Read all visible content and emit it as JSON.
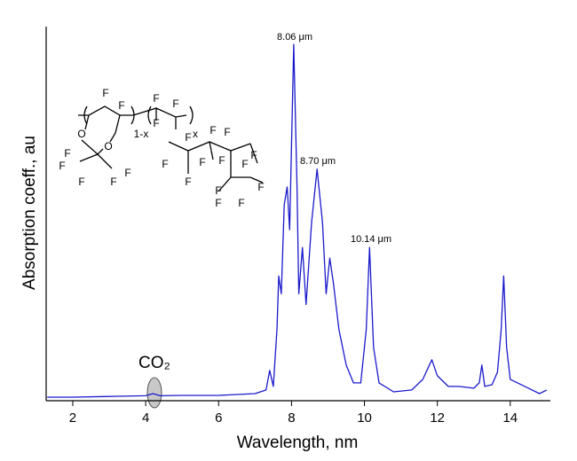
{
  "chart_data": {
    "type": "line",
    "xlabel": "Wavelength, nm",
    "ylabel": "Absorption coeff., au",
    "xlim": [
      1.27,
      15.1
    ],
    "ylim": [
      0,
      1.05
    ],
    "xticks": [
      2,
      4,
      6,
      8,
      10,
      12,
      14
    ],
    "x": [
      1.3,
      2,
      3,
      4,
      4.2,
      4.4,
      5,
      6,
      7,
      7.3,
      7.4,
      7.5,
      7.6,
      7.65,
      7.72,
      7.8,
      7.88,
      7.95,
      8.06,
      8.15,
      8.2,
      8.3,
      8.4,
      8.55,
      8.7,
      8.85,
      8.95,
      9.05,
      9.15,
      9.3,
      9.5,
      9.7,
      9.9,
      10.05,
      10.14,
      10.25,
      10.4,
      10.8,
      11.3,
      11.6,
      11.85,
      12,
      12.3,
      12.6,
      13,
      13.15,
      13.22,
      13.3,
      13.5,
      13.65,
      13.75,
      13.82,
      13.9,
      14,
      14.4,
      14.8,
      15
    ],
    "series": [
      {
        "name": "Absorption",
        "color": "#1a1acc",
        "values": [
          0.01,
          0.01,
          0.012,
          0.014,
          0.02,
          0.014,
          0.015,
          0.015,
          0.02,
          0.03,
          0.085,
          0.04,
          0.2,
          0.35,
          0.3,
          0.55,
          0.6,
          0.48,
          1.0,
          0.6,
          0.3,
          0.43,
          0.27,
          0.5,
          0.65,
          0.5,
          0.3,
          0.4,
          0.33,
          0.2,
          0.1,
          0.05,
          0.05,
          0.2,
          0.43,
          0.15,
          0.05,
          0.025,
          0.03,
          0.06,
          0.115,
          0.07,
          0.04,
          0.04,
          0.035,
          0.05,
          0.1,
          0.04,
          0.045,
          0.08,
          0.2,
          0.35,
          0.15,
          0.06,
          0.04,
          0.02,
          0.03
        ]
      }
    ],
    "annotations": [
      "8.06 μm",
      "8.70 μm",
      "10.14 μm",
      "CO₂"
    ],
    "structure_labels": [
      "F",
      "F",
      "O",
      "O",
      "1-x",
      "F",
      "F",
      "F",
      "x",
      "F",
      "F",
      "F",
      "F",
      "F",
      "F",
      "F",
      "F",
      "F",
      "F",
      "F",
      "F",
      "F",
      "F",
      "F",
      "F",
      "F",
      "F"
    ]
  }
}
